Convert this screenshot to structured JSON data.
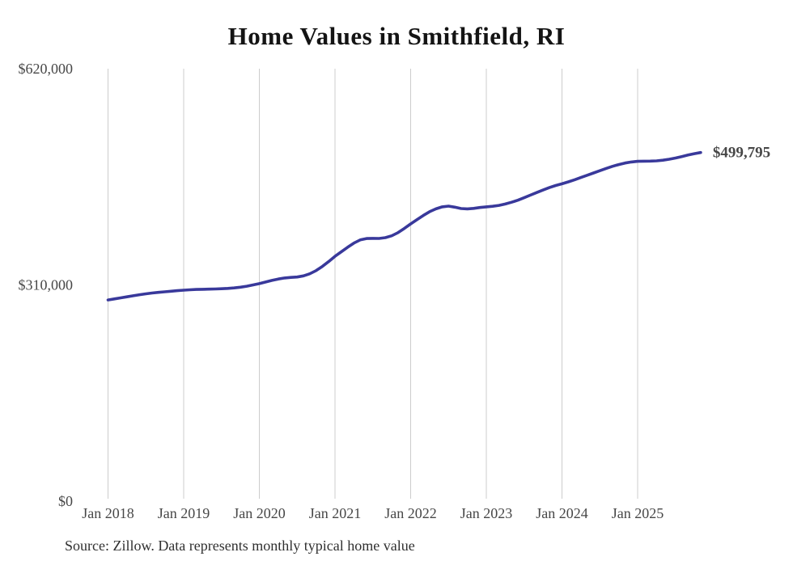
{
  "page": {
    "title": "Home Values in Smithfield, RI",
    "source_note": "Source: Zillow. Data represents monthly typical home value"
  },
  "colors": {
    "line": "#39399b",
    "grid": "#cccccc",
    "axis_text": "#474747",
    "title_text": "#141414",
    "end_label_text": "#39399b",
    "background": "#ffffff"
  },
  "chart_data": {
    "type": "line",
    "title": "Home Values in Smithfield, RI",
    "xlabel": "",
    "ylabel": "",
    "ylim": [
      0,
      620000
    ],
    "grid": "vertical-only",
    "legend": "none",
    "y_ticks": [
      {
        "value": 0,
        "label": "$0"
      },
      {
        "value": 310000,
        "label": "$310,000"
      },
      {
        "value": 620000,
        "label": "$620,000"
      }
    ],
    "x_ticks": [
      {
        "month_index": 0,
        "label": "Jan 2018"
      },
      {
        "month_index": 12,
        "label": "Jan 2019"
      },
      {
        "month_index": 24,
        "label": "Jan 2020"
      },
      {
        "month_index": 36,
        "label": "Jan 2021"
      },
      {
        "month_index": 48,
        "label": "Jan 2022"
      },
      {
        "month_index": 60,
        "label": "Jan 2023"
      },
      {
        "month_index": 72,
        "label": "Jan 2024"
      },
      {
        "month_index": 84,
        "label": "Jan 2025"
      }
    ],
    "series": [
      {
        "name": "Typical home value (USD)",
        "start_month": "2018-01",
        "frequency": "monthly",
        "values": [
          288500,
          290000,
          291500,
          293000,
          294500,
          296000,
          297300,
          298400,
          299300,
          300200,
          301000,
          301800,
          302500,
          303100,
          303500,
          303800,
          304000,
          304200,
          304500,
          305000,
          305700,
          306800,
          308200,
          310000,
          311800,
          314200,
          316500,
          318500,
          320000,
          320800,
          321300,
          323000,
          326000,
          330500,
          336500,
          343500,
          351000,
          357500,
          364000,
          370000,
          374500,
          376500,
          376800,
          376600,
          377800,
          380500,
          385000,
          391000,
          397500,
          403500,
          409500,
          415000,
          419000,
          422000,
          423000,
          421500,
          419500,
          419000,
          419800,
          421000,
          422000,
          422800,
          424000,
          426000,
          428500,
          431500,
          435000,
          438800,
          442500,
          446000,
          449500,
          452500,
          455000,
          457800,
          460800,
          464000,
          467300,
          470500,
          473800,
          477000,
          480000,
          482500,
          484800,
          486300,
          487200,
          487400,
          487500,
          487900,
          488800,
          490200,
          492000,
          494000,
          496200,
          498200,
          499795
        ]
      }
    ],
    "final_value": 499795,
    "final_value_label": "$499,795"
  }
}
